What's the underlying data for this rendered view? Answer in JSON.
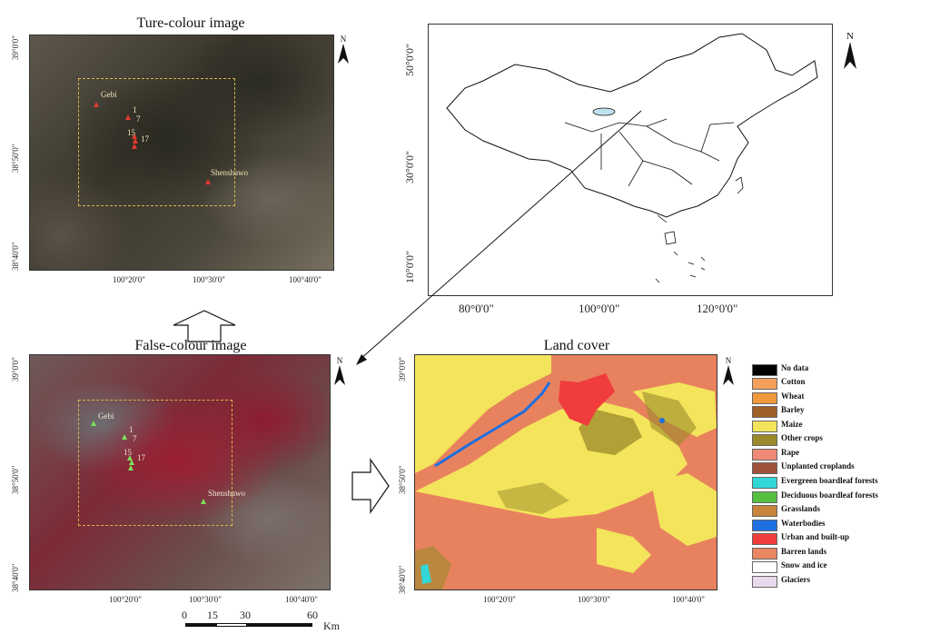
{
  "titles": {
    "true_colour": "Ture-colour image",
    "false_colour": "False-colour image",
    "land_cover": "Land cover"
  },
  "north": "N",
  "sat_x_ticks": [
    "100°20'0\"",
    "100°30'0\"",
    "100°40'0\""
  ],
  "sat_y_ticks": [
    "39°0'0\"",
    "38°50'0\"",
    "38°40'0\""
  ],
  "china_x_ticks": [
    "80°0'0\"",
    "100°0'0\"",
    "120°0'0\""
  ],
  "china_y_ticks": [
    "50°0'0\"",
    "30°0'0\"",
    "10°0'0\""
  ],
  "sites": {
    "gebi": "Gebi",
    "s1": "1",
    "s7": "7",
    "s15": "15",
    "s17": "17",
    "shenshawo": "Shenshawo"
  },
  "scale": {
    "t0": "0",
    "t15": "15",
    "t30": "30",
    "t60": "60",
    "unit": "Km"
  },
  "legend": [
    {
      "label": "No data",
      "color": "#000000"
    },
    {
      "label": "Cotton",
      "color": "#f5a05a"
    },
    {
      "label": "Wheat",
      "color": "#f0983c"
    },
    {
      "label": "Barley",
      "color": "#a0602a"
    },
    {
      "label": "Maize",
      "color": "#f3e45b"
    },
    {
      "label": "Other crops",
      "color": "#9a8a2a"
    },
    {
      "label": "Rape",
      "color": "#f08a78"
    },
    {
      "label": "Unplanted croplands",
      "color": "#a0523a"
    },
    {
      "label": "Evergreen boardleaf forests",
      "color": "#33d6d6"
    },
    {
      "label": "Deciduous boardleaf forests",
      "color": "#55c040"
    },
    {
      "label": "Grasslands",
      "color": "#c8843a"
    },
    {
      "label": "Waterbodies",
      "color": "#1e6fe0"
    },
    {
      "label": "Urban and built-up",
      "color": "#f03c3c"
    },
    {
      "label": "Barren lands",
      "color": "#ea8763"
    },
    {
      "label": "Snow and ice",
      "color": "#ffffff"
    },
    {
      "label": "Glaciers",
      "color": "#ead9ee"
    }
  ]
}
